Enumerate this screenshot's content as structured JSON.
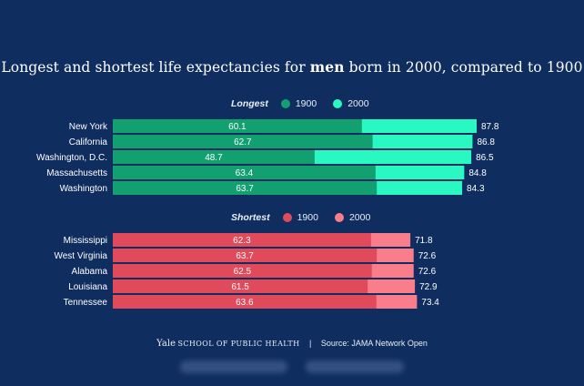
{
  "title_pre": "Longest and shortest life expectancies for ",
  "title_bold": "men",
  "title_post": " born in 2000, compared to 1900",
  "colors": {
    "background": "#0f2d5f",
    "longest_1900": "#12a071",
    "longest_2000": "#2af8c3",
    "shortest_1900": "#e04a5b",
    "shortest_2000": "#f97d8a"
  },
  "footer": {
    "yale": "Yale",
    "school": "SCHOOL OF PUBLIC HEALTH",
    "separator": "|",
    "source": "Source: JAMA Network Open"
  },
  "chart_data": [
    {
      "type": "bar",
      "title": "Longest",
      "series": [
        {
          "name": "1900",
          "values": [
            60.1,
            62.7,
            48.7,
            63.4,
            63.7
          ]
        },
        {
          "name": "2000",
          "values": [
            87.8,
            86.8,
            86.5,
            84.8,
            84.3
          ]
        }
      ],
      "categories": [
        "New York",
        "California",
        "Washington, D.C.",
        "Massachusetts",
        "Washington"
      ],
      "orientation": "horizontal",
      "legend_position": "top"
    },
    {
      "type": "bar",
      "title": "Shortest",
      "series": [
        {
          "name": "1900",
          "values": [
            62.3,
            63.7,
            62.5,
            61.5,
            63.6
          ]
        },
        {
          "name": "2000",
          "values": [
            71.8,
            72.6,
            72.6,
            72.9,
            73.4
          ]
        }
      ],
      "categories": [
        "Mississippi",
        "West Virginia",
        "Alabama",
        "Louisiana",
        "Tennessee"
      ],
      "orientation": "horizontal",
      "legend_position": "top"
    }
  ]
}
